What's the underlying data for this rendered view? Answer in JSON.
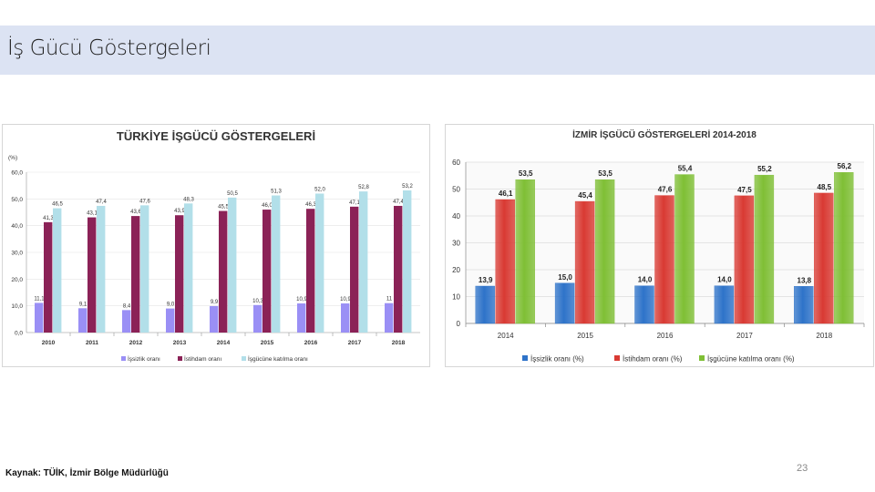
{
  "header": {
    "title": "İş Gücü Göstergeleri"
  },
  "footer": {
    "source": "Kaynak: TÜİK, İzmir Bölge Müdürlüğü",
    "page_number": "23"
  },
  "chart_data": [
    {
      "type": "bar",
      "title": "TÜRKİYE İŞGÜCÜ GÖSTERGELERİ",
      "ylabel": "(%)",
      "xlabel": "",
      "ylim": [
        0,
        60
      ],
      "yticks": [
        "0,0",
        "10,0",
        "20,0",
        "30,0",
        "40,0",
        "50,0",
        "60,0"
      ],
      "categories": [
        "2010",
        "2011",
        "2012",
        "2013",
        "2014",
        "2015",
        "2016",
        "2017",
        "2018"
      ],
      "legend_position": "bottom",
      "series": [
        {
          "name": "İşsizlik oranı",
          "color": "#9a8ff5",
          "values": [
            11.1,
            9.1,
            8.4,
            9.0,
            9.9,
            10.3,
            10.9,
            10.9,
            11.0
          ],
          "labels": [
            "11,1",
            "9,1",
            "8,4",
            "9,0",
            "9,9",
            "10,3",
            "10,9",
            "10,9",
            "11"
          ]
        },
        {
          "name": "İstihdam oranı",
          "color": "#8b2257",
          "values": [
            41.3,
            43.1,
            43.6,
            43.9,
            45.5,
            46.0,
            46.3,
            47.1,
            47.4
          ],
          "labels": [
            "41,3",
            "43,1",
            "43,6",
            "43,9",
            "45,5",
            "46,0",
            "46,3",
            "47,1",
            "47,4"
          ]
        },
        {
          "name": "İşgücüne katılma oranı",
          "color": "#b2dfe9",
          "values": [
            46.5,
            47.4,
            47.6,
            48.3,
            50.5,
            51.3,
            52.0,
            52.8,
            53.2
          ],
          "labels": [
            "46,5",
            "47,4",
            "47,6",
            "48,3",
            "50,5",
            "51,3",
            "52,0",
            "52,8",
            "53,2"
          ]
        }
      ]
    },
    {
      "type": "bar",
      "title": "İZMİR İŞGÜCÜ GÖSTERGELERİ 2014-2018",
      "ylabel": "",
      "xlabel": "",
      "ylim": [
        0,
        60
      ],
      "yticks": [
        "0",
        "10",
        "20",
        "30",
        "40",
        "50",
        "60"
      ],
      "categories": [
        "2014",
        "2015",
        "2016",
        "2017",
        "2018"
      ],
      "legend_position": "bottom",
      "series": [
        {
          "name": "İşsizlik oranı (%)",
          "color": "#2e73c9",
          "values": [
            13.9,
            15.0,
            14.0,
            14.0,
            13.8
          ],
          "labels": [
            "13,9",
            "15,0",
            "14,0",
            "14,0",
            "13,8"
          ]
        },
        {
          "name": "İstihdam oranı (%)",
          "color": "#d93a33",
          "values": [
            46.1,
            45.4,
            47.6,
            47.5,
            48.5
          ],
          "labels": [
            "46,1",
            "45,4",
            "47,6",
            "47,5",
            "48,5"
          ]
        },
        {
          "name": "İşgücüne katılma oranı (%)",
          "color": "#7fbf35",
          "values": [
            53.5,
            53.5,
            55.4,
            55.2,
            56.2
          ],
          "labels": [
            "53,5",
            "53,5",
            "55,4",
            "55,2",
            "56,2"
          ]
        }
      ]
    }
  ]
}
